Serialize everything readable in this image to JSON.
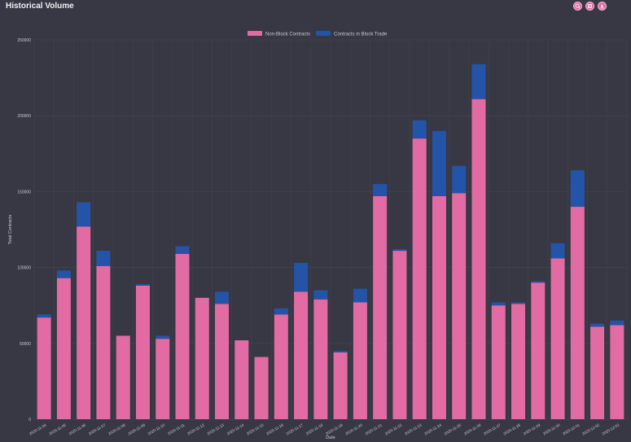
{
  "header": {
    "title": "Historical Volume",
    "toolbar": [
      {
        "name": "zoom-in-icon"
      },
      {
        "name": "reset-zoom-icon"
      },
      {
        "name": "download-icon"
      }
    ]
  },
  "colors": {
    "background": "#373844",
    "non_block": "#e36ba3",
    "block": "#2454a8",
    "grid": "#44454f",
    "text": "#c9c9d2"
  },
  "chart_data": {
    "type": "bar",
    "stacked": true,
    "title": "",
    "xlabel": "Date",
    "ylabel": "Total Contracts",
    "ylim": [
      0,
      250000
    ],
    "yticks": [
      0,
      50000,
      100000,
      150000,
      200000,
      250000
    ],
    "ytick_labels": [
      "0",
      "50000",
      "100000",
      "150000",
      "200000",
      "250000"
    ],
    "legend_position": "top-center",
    "categories": [
      "2020-11-04",
      "2020-11-05",
      "2020-11-06",
      "2020-11-07",
      "2020-11-08",
      "2020-11-09",
      "2020-11-10",
      "2020-11-11",
      "2020-11-12",
      "2020-11-13",
      "2020-11-14",
      "2020-11-15",
      "2020-11-16",
      "2020-11-17",
      "2020-11-18",
      "2020-11-19",
      "2020-11-20",
      "2020-11-21",
      "2020-11-22",
      "2020-11-23",
      "2020-11-24",
      "2020-11-25",
      "2020-11-26",
      "2020-11-27",
      "2020-11-28",
      "2020-11-29",
      "2020-11-30",
      "2020-12-01",
      "2020-12-02",
      "2020-12-03"
    ],
    "series": [
      {
        "name": "Non-Block Contracts",
        "values": [
          67000,
          93000,
          127000,
          101000,
          55000,
          88000,
          53000,
          109000,
          80000,
          76000,
          52000,
          41000,
          69000,
          84000,
          79000,
          44000,
          77000,
          147000,
          111000,
          185000,
          147000,
          149000,
          211000,
          75000,
          76000,
          90000,
          106000,
          140000,
          61000,
          62000
        ]
      },
      {
        "name": "Contracts in Block Trade",
        "values": [
          2000,
          5000,
          16000,
          10000,
          0,
          1000,
          2000,
          5000,
          0,
          8000,
          0,
          0,
          4000,
          19000,
          6000,
          1000,
          9000,
          8000,
          1000,
          12000,
          43000,
          18000,
          23000,
          2000,
          1000,
          1000,
          10000,
          24000,
          2000,
          3000
        ]
      }
    ]
  }
}
